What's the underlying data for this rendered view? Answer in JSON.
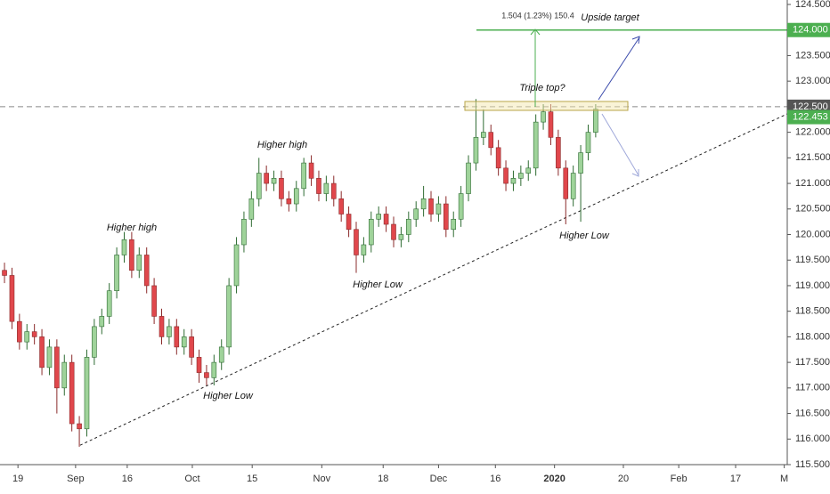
{
  "chart_data": {
    "type": "candlestick",
    "x": [
      0,
      1,
      2,
      3,
      4,
      5,
      6,
      7,
      8,
      9,
      10,
      11,
      12,
      13,
      14,
      15,
      16,
      17,
      18,
      19,
      20,
      21,
      22,
      23,
      24,
      25,
      26,
      27,
      28,
      29,
      30,
      31,
      32,
      33,
      34,
      35,
      36,
      37,
      38,
      39,
      40,
      41,
      42,
      43,
      44,
      45,
      46,
      47,
      48,
      49,
      50,
      51,
      52,
      53,
      54,
      55,
      56,
      57,
      58,
      59,
      60,
      61,
      62,
      63,
      64,
      65,
      66,
      67,
      68,
      69,
      70,
      71,
      72,
      73,
      74,
      75,
      76,
      77,
      78,
      79
    ],
    "open": [
      119.3,
      119.2,
      118.3,
      117.9,
      118.1,
      118.0,
      117.4,
      117.8,
      117.0,
      117.5,
      116.3,
      116.2,
      117.6,
      118.2,
      118.4,
      118.9,
      119.6,
      119.9,
      119.3,
      119.6,
      119.0,
      118.4,
      118.0,
      118.2,
      117.8,
      118.0,
      117.6,
      117.3,
      117.2,
      117.5,
      117.8,
      119.0,
      119.8,
      120.3,
      120.7,
      121.2,
      121.0,
      121.1,
      120.7,
      120.6,
      120.9,
      121.4,
      121.1,
      120.8,
      121.0,
      120.7,
      120.4,
      120.1,
      119.6,
      119.8,
      120.3,
      120.4,
      120.2,
      119.9,
      120.0,
      120.3,
      120.5,
      120.7,
      120.4,
      120.6,
      120.1,
      120.3,
      120.8,
      121.4,
      121.9,
      122.0,
      121.7,
      121.3,
      121.0,
      121.1,
      121.2,
      121.3,
      122.2,
      122.4,
      121.9,
      121.3,
      120.7,
      121.2,
      121.6,
      122.0
    ],
    "high": [
      119.45,
      119.35,
      118.45,
      118.25,
      118.25,
      118.15,
      117.95,
      117.95,
      117.65,
      117.65,
      116.45,
      117.75,
      118.35,
      118.55,
      119.05,
      119.75,
      120.05,
      120.05,
      119.75,
      119.75,
      119.15,
      118.55,
      118.35,
      118.35,
      118.15,
      118.15,
      117.75,
      117.45,
      117.65,
      117.95,
      119.15,
      119.95,
      120.45,
      120.85,
      121.5,
      121.35,
      121.25,
      121.25,
      120.85,
      121.05,
      121.5,
      121.55,
      121.25,
      121.15,
      121.15,
      120.85,
      120.55,
      120.25,
      119.95,
      120.45,
      120.55,
      120.55,
      120.35,
      120.15,
      120.45,
      120.65,
      120.95,
      120.85,
      120.75,
      120.75,
      120.45,
      120.95,
      121.55,
      122.65,
      122.45,
      122.15,
      121.85,
      121.45,
      121.25,
      121.35,
      121.45,
      122.35,
      122.55,
      122.55,
      122.05,
      121.45,
      121.35,
      121.75,
      122.15,
      122.55
    ],
    "low": [
      119.05,
      118.15,
      117.75,
      117.75,
      117.85,
      117.25,
      117.25,
      116.5,
      116.85,
      116.15,
      115.85,
      116.05,
      117.45,
      118.05,
      118.25,
      118.75,
      119.45,
      119.15,
      119.15,
      118.85,
      118.25,
      117.85,
      117.85,
      117.65,
      117.65,
      117.45,
      117.1,
      117.05,
      117.05,
      117.35,
      117.65,
      118.85,
      119.65,
      120.15,
      120.55,
      120.85,
      120.85,
      120.55,
      120.45,
      120.45,
      120.75,
      120.95,
      120.65,
      120.65,
      120.55,
      120.25,
      119.95,
      119.25,
      119.45,
      119.65,
      120.15,
      120.05,
      119.75,
      119.75,
      119.85,
      120.15,
      120.35,
      120.25,
      120.25,
      119.95,
      119.95,
      120.15,
      120.65,
      121.25,
      121.75,
      121.55,
      121.15,
      120.85,
      120.85,
      120.95,
      121.05,
      121.15,
      122.05,
      121.75,
      121.15,
      120.2,
      120.55,
      120.25,
      121.45,
      121.9
    ],
    "close": [
      119.2,
      118.3,
      117.9,
      118.1,
      118.0,
      117.4,
      117.8,
      117.0,
      117.5,
      116.3,
      116.2,
      117.6,
      118.2,
      118.4,
      118.9,
      119.6,
      119.9,
      119.3,
      119.6,
      119.0,
      118.4,
      118.0,
      118.2,
      117.8,
      118.0,
      117.6,
      117.3,
      117.2,
      117.5,
      117.8,
      119.0,
      119.8,
      120.3,
      120.7,
      121.2,
      121.0,
      121.1,
      120.7,
      120.6,
      120.9,
      121.4,
      121.1,
      120.8,
      121.0,
      120.7,
      120.4,
      120.1,
      119.6,
      119.8,
      120.3,
      120.4,
      120.2,
      119.9,
      120.0,
      120.3,
      120.5,
      120.7,
      120.4,
      120.6,
      120.1,
      120.3,
      120.8,
      121.4,
      121.9,
      122.0,
      121.7,
      121.3,
      121.0,
      121.1,
      121.2,
      121.3,
      122.2,
      122.4,
      121.9,
      121.3,
      120.7,
      121.2,
      121.6,
      122.0,
      122.453
    ],
    "up_color": "#9fd39a",
    "down_color": "#e0474c",
    "xlim": [
      -0.6,
      104.6
    ],
    "xticks": [
      {
        "value": 1.8,
        "label": "19"
      },
      {
        "value": 9.5,
        "label": "Sep"
      },
      {
        "value": 16.4,
        "label": "16"
      },
      {
        "value": 25.1,
        "label": "Oct"
      },
      {
        "value": 33.1,
        "label": "15"
      },
      {
        "value": 42.4,
        "label": "Nov"
      },
      {
        "value": 50.6,
        "label": "18"
      },
      {
        "value": 58.0,
        "label": "Dec"
      },
      {
        "value": 65.6,
        "label": "16"
      },
      {
        "value": 73.5,
        "label": "2020"
      },
      {
        "value": 82.7,
        "label": "20"
      },
      {
        "value": 90.1,
        "label": "Feb"
      },
      {
        "value": 97.7,
        "label": "17"
      },
      {
        "value": 104.2,
        "label": "M"
      }
    ],
    "ylim": [
      115.5,
      124.5
    ],
    "yticks": [
      {
        "value": 115.5,
        "label": "115.500"
      },
      {
        "value": 116.0,
        "label": "116.000"
      },
      {
        "value": 116.5,
        "label": "116.500"
      },
      {
        "value": 117.0,
        "label": "117.000"
      },
      {
        "value": 117.5,
        "label": "117.500"
      },
      {
        "value": 118.0,
        "label": "118.000"
      },
      {
        "value": 118.5,
        "label": "118.500"
      },
      {
        "value": 119.0,
        "label": "119.000"
      },
      {
        "value": 119.5,
        "label": "119.500"
      },
      {
        "value": 120.0,
        "label": "120.000"
      },
      {
        "value": 120.5,
        "label": "120.500"
      },
      {
        "value": 121.0,
        "label": "121.000"
      },
      {
        "value": 121.5,
        "label": "121.500"
      },
      {
        "value": 122.0,
        "label": "122.000"
      },
      {
        "value": 123.0,
        "label": "123.000"
      },
      {
        "value": 123.5,
        "label": "123.500"
      },
      {
        "value": 124.5,
        "label": "124.500"
      }
    ],
    "levels": [
      {
        "value": 124.0,
        "label": "124.000",
        "color": "#4caf50",
        "style": "solid"
      },
      {
        "value": 122.5,
        "label": "122.500",
        "color": "#555555",
        "style": "dashed"
      }
    ],
    "last_price_color": "#4caf50",
    "trendline": {
      "x": [
        10.1,
        104.6
      ],
      "y": [
        115.88,
        122.36
      ]
    },
    "annotations": [
      "Higher high",
      "Higher high",
      "Higher Low",
      "Higher Low",
      "Higher Low",
      "Triple top?",
      "Upside target",
      "1.504 (1.23%) 150.4"
    ]
  }
}
